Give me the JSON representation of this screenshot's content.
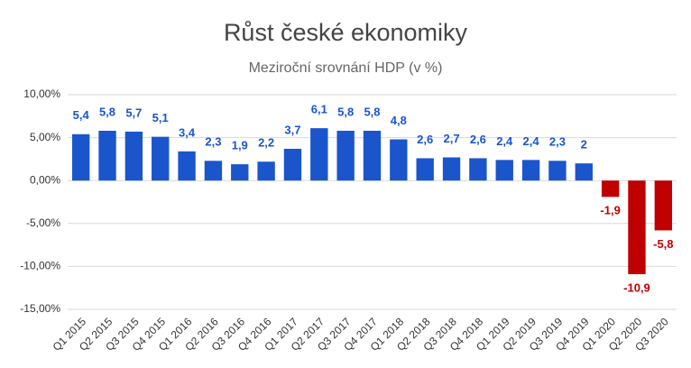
{
  "chart_data": {
    "type": "bar",
    "title": "Růst české ekonomiky",
    "subtitle": "Meziroční srovnání HDP (v %)",
    "categories": [
      "Q1 2015",
      "Q2 2015",
      "Q3 2015",
      "Q4 2015",
      "Q1 2016",
      "Q2 2016",
      "Q3 2016",
      "Q4 2016",
      "Q1 2017",
      "Q2 2017",
      "Q3 2017",
      "Q4 2017",
      "Q1 2018",
      "Q2 2018",
      "Q3 2018",
      "Q4 2018",
      "Q1 2019",
      "Q2 2019",
      "Q3 2019",
      "Q4 2019",
      "Q1 2020",
      "Q2 2020",
      "Q3 2020"
    ],
    "values": [
      5.4,
      5.8,
      5.7,
      5.1,
      3.4,
      2.3,
      1.9,
      2.2,
      3.7,
      6.1,
      5.8,
      5.8,
      4.8,
      2.6,
      2.7,
      2.6,
      2.4,
      2.4,
      2.3,
      2,
      -1.9,
      -10.9,
      -5.8
    ],
    "value_labels": [
      "5,4",
      "5,8",
      "5,7",
      "5,1",
      "3,4",
      "2,3",
      "1,9",
      "2,2",
      "3,7",
      "6,1",
      "5,8",
      "5,8",
      "4,8",
      "2,6",
      "2,7",
      "2,6",
      "2,4",
      "2,4",
      "2,3",
      "2",
      "-1,9",
      "-10,9",
      "-5,8"
    ],
    "color": "#1a55cc",
    "negative_color": "#c00000",
    "ylim": [
      -15,
      10
    ],
    "yticks": [
      {
        "value": -15,
        "label": "-15,00%"
      },
      {
        "value": -10,
        "label": "-10,00%"
      },
      {
        "value": -5,
        "label": "-5,00%"
      },
      {
        "value": 0,
        "label": "0,00%"
      },
      {
        "value": 5,
        "label": "5,00%"
      },
      {
        "value": 10,
        "label": "10,00%"
      }
    ],
    "grid": true
  }
}
